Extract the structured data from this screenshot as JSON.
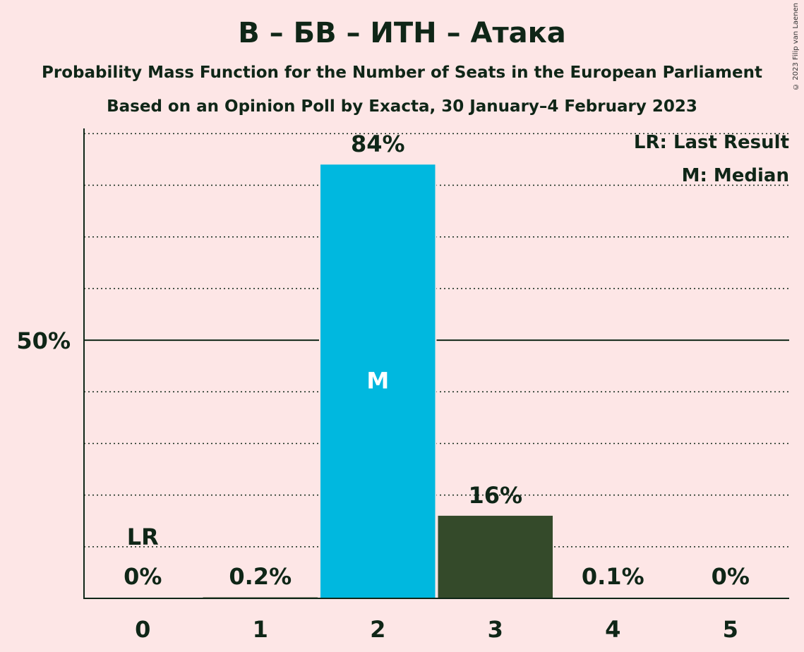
{
  "title": "В – БВ – ИТН – Атака",
  "subtitle": "Probability Mass Function for the Number of Seats in the European Parliament",
  "subtitle2": "Based on an Opinion Poll by Exacta, 30 January–4 February 2023",
  "copyright": "© 2023 Filip van Laenen",
  "legend": {
    "last_result": "LR: Last Result",
    "median": "M: Median"
  },
  "colors": {
    "background": "#fde6e6",
    "median_bar": "#00b8df",
    "other_bar": "#344a2a",
    "text": "#0f2617"
  },
  "chart_data": {
    "type": "bar",
    "categories": [
      "0",
      "1",
      "2",
      "3",
      "4",
      "5"
    ],
    "values": [
      0,
      0.2,
      84,
      16,
      0.1,
      0
    ],
    "value_labels": [
      "0%",
      "0.2%",
      "84%",
      "16%",
      "0.1%",
      "0%"
    ],
    "median_category": "2",
    "median_marker": "M",
    "last_result_category": "0",
    "last_result_marker": "LR",
    "ylim": [
      0,
      91
    ],
    "y_tick_label": "50%",
    "y_tick_value": 50,
    "gridline_step": 10,
    "legend_position": "top-right"
  }
}
